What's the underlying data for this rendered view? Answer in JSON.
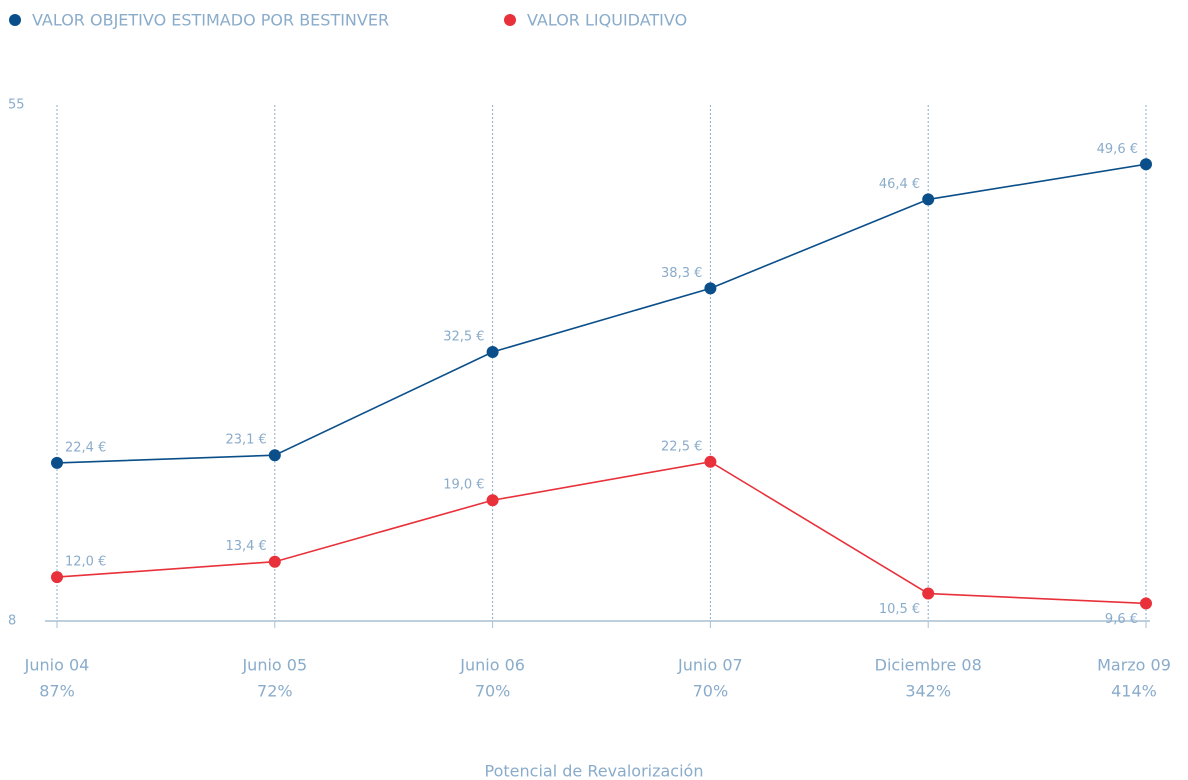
{
  "chart_data": {
    "type": "line",
    "categories": [
      "Junio 04",
      "Junio 05",
      "Junio 06",
      "Junio 07",
      "Diciembre 08",
      "Marzo 09"
    ],
    "category_sublabels": [
      "87%",
      "72%",
      "70%",
      "70%",
      "342%",
      "414%"
    ],
    "x_axis_label": "Potencial de Revalorización",
    "series": [
      {
        "name": "VALOR OBJETIVO ESTIMADO POR BESTINVER",
        "color": "#0b4f8a",
        "values": [
          22.4,
          23.1,
          32.5,
          38.3,
          46.4,
          49.6
        ],
        "value_labels": [
          "22,4 €",
          "23,1 €",
          "32,5 €",
          "38,3 €",
          "46,4 €",
          "49,6 €"
        ]
      },
      {
        "name": "VALOR  LIQUIDATIVO",
        "color": "#e8313a",
        "values": [
          12.0,
          13.4,
          19.0,
          22.5,
          10.5,
          9.6
        ],
        "value_labels": [
          "12,0 €",
          "13,4 €",
          "19,0 €",
          "22,5 €",
          "10,5 €",
          "9,6 €"
        ]
      }
    ],
    "ylim": [
      8,
      55
    ],
    "yticks": [
      8,
      55
    ],
    "grid": true,
    "legend": "top-left"
  }
}
